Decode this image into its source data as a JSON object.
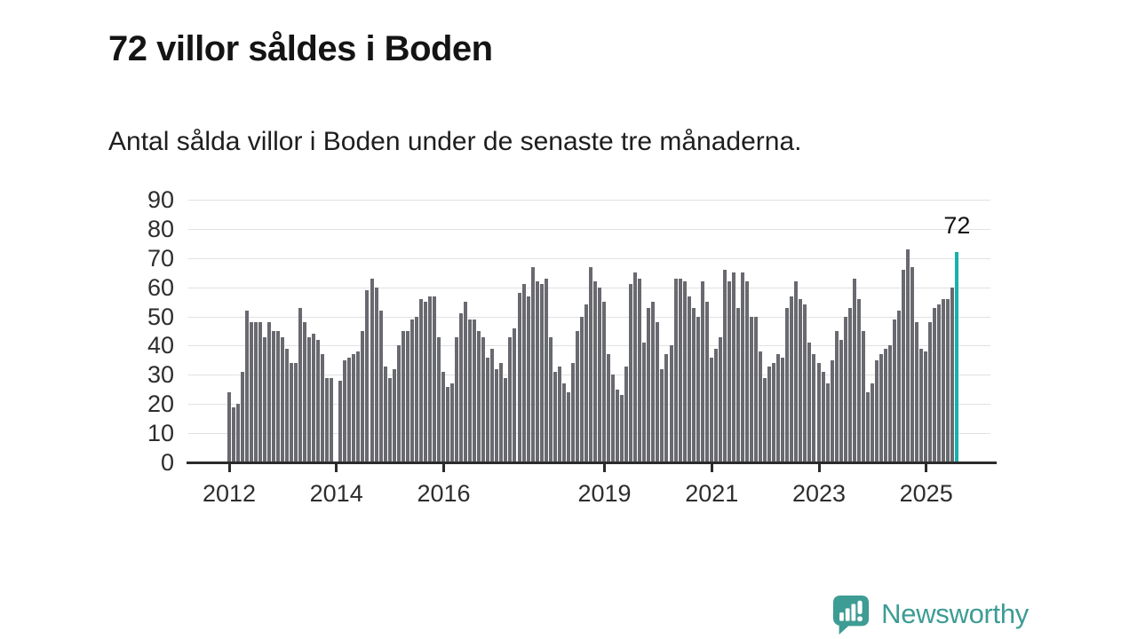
{
  "header": {
    "title": "72 villor såldes i Boden",
    "subtitle": "Antal sålda villor i Boden under de senaste tre månaderna."
  },
  "chart_data": {
    "type": "bar",
    "title": "72 villor såldes i Boden",
    "subtitle": "Antal sålda villor i Boden under de senaste tre månaderna.",
    "x_axis": {
      "start_year": 2012,
      "start_month": 1,
      "frequency": "monthly",
      "tick_labels": [
        "2012",
        "2014",
        "2016",
        "2019",
        "2021",
        "2023",
        "2025"
      ],
      "tick_month_indices": [
        0,
        24,
        48,
        84,
        108,
        132,
        156
      ]
    },
    "y_axis": {
      "ticks": [
        0,
        10,
        20,
        30,
        40,
        50,
        60,
        70,
        80,
        90
      ],
      "range": [
        0,
        90
      ]
    },
    "values": [
      24,
      19,
      20,
      31,
      52,
      48,
      48,
      48,
      43,
      48,
      45,
      45,
      43,
      39,
      34,
      34,
      53,
      48,
      43,
      44,
      42,
      37,
      29,
      29,
      0,
      28,
      35,
      36,
      37,
      38,
      45,
      59,
      63,
      60,
      52,
      33,
      29,
      32,
      40,
      45,
      45,
      49,
      50,
      56,
      55,
      57,
      57,
      43,
      31,
      26,
      27,
      43,
      51,
      55,
      49,
      49,
      45,
      43,
      36,
      39,
      32,
      34,
      29,
      43,
      46,
      58,
      61,
      57,
      67,
      62,
      61,
      63,
      43,
      31,
      33,
      27,
      24,
      34,
      45,
      50,
      54,
      67,
      62,
      60,
      55,
      37,
      30,
      25,
      23,
      33,
      61,
      65,
      63,
      41,
      53,
      55,
      48,
      32,
      37,
      40,
      63,
      63,
      62,
      57,
      53,
      50,
      62,
      55,
      36,
      39,
      43,
      66,
      62,
      65,
      53,
      65,
      62,
      50,
      50,
      38,
      29,
      33,
      34,
      37,
      36,
      53,
      57,
      62,
      56,
      54,
      41,
      37,
      34,
      31,
      27,
      35,
      45,
      42,
      50,
      53,
      63,
      56,
      45,
      24,
      27,
      35,
      37,
      39,
      40,
      49,
      52,
      66,
      73,
      67,
      48,
      39,
      38,
      48,
      53,
      54,
      56,
      56,
      60,
      72
    ],
    "highlight": {
      "index": 163,
      "value": 72,
      "annotation": "72"
    },
    "colors": {
      "bar": "#696970",
      "highlight": "#17b0aa",
      "grid": "#e1e1e1",
      "axis": "#2b2b2b",
      "label_text": "#2d2d2d"
    },
    "grid": "horizontal",
    "legend": "none"
  },
  "footer": {
    "brand": "Newsworthy",
    "brand_color": "#3d9c94",
    "icon": "newsworthy-logo-icon"
  }
}
